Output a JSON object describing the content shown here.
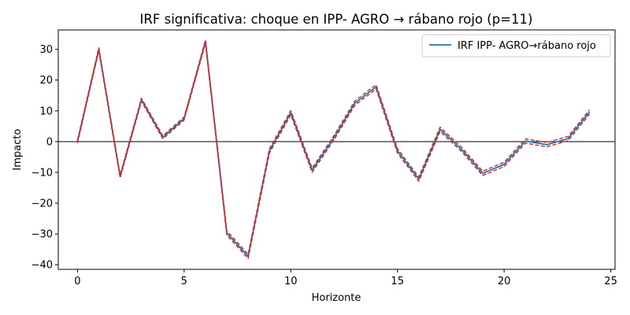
{
  "chart_data": {
    "type": "line",
    "title": "IRF significativa: choque en IPP- AGRO → rábano rojo (p=11)",
    "xlabel": "Horizonte",
    "ylabel": "Impacto",
    "xlim": [
      -0.9,
      25.2
    ],
    "ylim": [
      -41.5,
      36.3
    ],
    "xticks": [
      0,
      5,
      10,
      15,
      20,
      25
    ],
    "yticks": [
      -40,
      -30,
      -20,
      -10,
      0,
      10,
      20,
      30
    ],
    "grid": false,
    "zero_line": true,
    "legend_position": "top-right",
    "x": [
      0,
      1,
      2,
      3,
      4,
      5,
      6,
      7,
      8,
      9,
      10,
      11,
      12,
      13,
      14,
      15,
      16,
      17,
      18,
      19,
      20,
      21,
      22,
      23,
      24
    ],
    "series": [
      {
        "name": "IRF IPP- AGRO→rábano rojo",
        "color": "#1f77b4",
        "style": "solid",
        "values": [
          0,
          30,
          -11.3,
          13.6,
          1.4,
          7.5,
          32.5,
          -29.7,
          -37.3,
          -3,
          9.4,
          -9.3,
          1,
          12.5,
          17.8,
          -3,
          -12.2,
          4,
          -2.5,
          -10.3,
          -7.4,
          0.2,
          -1,
          1,
          9.6
        ]
      },
      {
        "color": "#d62728",
        "style": "dashed",
        "values": [
          0.5,
          30.5,
          -10.8,
          14.1,
          1.9,
          8,
          33,
          -29,
          -36.6,
          -2.3,
          10.1,
          -8.6,
          1.7,
          13.2,
          18.5,
          -2.3,
          -11.5,
          4.7,
          -1.8,
          -9.6,
          -6.7,
          0.9,
          -0.3,
          1.7,
          10.3
        ]
      },
      {
        "color": "#d62728",
        "style": "dashed",
        "values": [
          -0.5,
          29.5,
          -11.8,
          13.1,
          0.9,
          7,
          32,
          -30.4,
          -38,
          -3.7,
          8.7,
          -10,
          0.3,
          11.8,
          17.1,
          -3.7,
          -12.9,
          3.3,
          -3.2,
          -11,
          -8.1,
          -0.5,
          -1.7,
          0.3,
          8.9
        ]
      }
    ]
  }
}
